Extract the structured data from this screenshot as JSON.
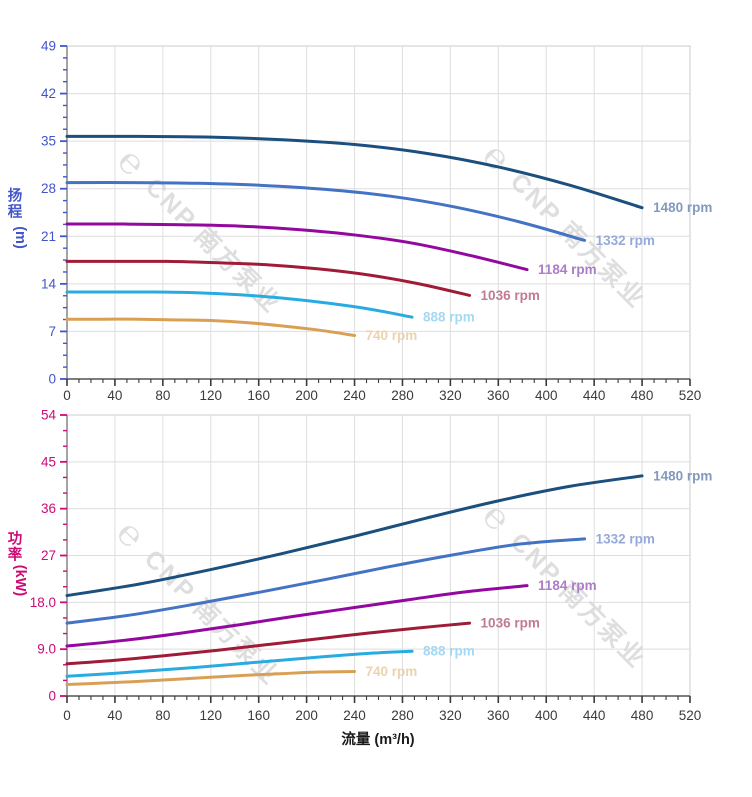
{
  "figure": {
    "background": "#ffffff",
    "watermark_logo": "℮",
    "watermark_text": "CNP 南方泵业",
    "watermark_color": "#d9d9d9"
  },
  "chart_data": [
    {
      "id": "head",
      "type": "line",
      "title": "",
      "xlabel": "流量 (m³/h)",
      "ylabel": "扬程",
      "y_unit": "(m)",
      "xlim": [
        0,
        520
      ],
      "ylim": [
        0,
        49
      ],
      "x_major_step": 40,
      "x_minor_per_major": 3,
      "y_major_step": 7,
      "y_minor_per_major": 3,
      "grid": true,
      "legend_position": "curve-ends",
      "axis_color": "#4255cb",
      "x_tick_color": "#3a3a3a",
      "x_tick_labels": [
        "0",
        "40",
        "80",
        "120",
        "160",
        "200",
        "240",
        "280",
        "320",
        "360",
        "400",
        "440",
        "480",
        "520"
      ],
      "y_tick_labels": [
        "0",
        "7",
        "14",
        "21",
        "28",
        "35",
        "42",
        "49"
      ],
      "series": [
        {
          "name": "1480 rpm",
          "rpm": 1480,
          "color": "#1b4f7e",
          "label_color": "#8299bd",
          "points": [
            [
              0,
              35.7
            ],
            [
              60,
              35.7
            ],
            [
              120,
              35.6
            ],
            [
              180,
              35.2
            ],
            [
              240,
              34.5
            ],
            [
              300,
              33.2
            ],
            [
              360,
              31.2
            ],
            [
              420,
              28.5
            ],
            [
              480,
              25.2
            ]
          ]
        },
        {
          "name": "1332 rpm",
          "rpm": 1332,
          "color": "#4472c4",
          "label_color": "#97a9da",
          "points": [
            [
              0,
              28.9
            ],
            [
              54,
              28.9
            ],
            [
              108,
              28.8
            ],
            [
              162,
              28.5
            ],
            [
              216,
              27.9
            ],
            [
              270,
              26.9
            ],
            [
              324,
              25.3
            ],
            [
              378,
              23.1
            ],
            [
              432,
              20.4
            ]
          ]
        },
        {
          "name": "1184 rpm",
          "rpm": 1184,
          "color": "#93099f",
          "label_color": "#ad7cc6",
          "points": [
            [
              0,
              22.8
            ],
            [
              48,
              22.8
            ],
            [
              96,
              22.7
            ],
            [
              144,
              22.5
            ],
            [
              192,
              22.0
            ],
            [
              240,
              21.2
            ],
            [
              288,
              20.0
            ],
            [
              336,
              18.2
            ],
            [
              384,
              16.1
            ]
          ]
        },
        {
          "name": "1036 rpm",
          "rpm": 1036,
          "color": "#a01b38",
          "label_color": "#c07b90",
          "points": [
            [
              0,
              17.3
            ],
            [
              42,
              17.3
            ],
            [
              84,
              17.3
            ],
            [
              126,
              17.1
            ],
            [
              168,
              16.8
            ],
            [
              210,
              16.2
            ],
            [
              252,
              15.3
            ],
            [
              294,
              14.0
            ],
            [
              336,
              12.3
            ]
          ]
        },
        {
          "name": "888 rpm",
          "rpm": 888,
          "color": "#29abe2",
          "label_color": "#a5d8f2",
          "points": [
            [
              0,
              12.8
            ],
            [
              36,
              12.8
            ],
            [
              72,
              12.8
            ],
            [
              108,
              12.7
            ],
            [
              144,
              12.4
            ],
            [
              180,
              11.9
            ],
            [
              216,
              11.2
            ],
            [
              252,
              10.3
            ],
            [
              288,
              9.1
            ]
          ]
        },
        {
          "name": "740 rpm",
          "rpm": 740,
          "color": "#d9a055",
          "label_color": "#ecd3ad",
          "points": [
            [
              0,
              8.8
            ],
            [
              30,
              8.8
            ],
            [
              60,
              8.8
            ],
            [
              90,
              8.7
            ],
            [
              120,
              8.6
            ],
            [
              150,
              8.3
            ],
            [
              180,
              7.8
            ],
            [
              210,
              7.2
            ],
            [
              240,
              6.4
            ]
          ]
        }
      ]
    },
    {
      "id": "power",
      "type": "line",
      "title": "",
      "xlabel": "流量 (m³/h)",
      "ylabel": "功率",
      "y_unit": "(kW)",
      "xlim": [
        0,
        520
      ],
      "ylim": [
        0,
        54
      ],
      "x_major_step": 40,
      "x_minor_per_major": 3,
      "y_major_step": 9,
      "y_minor_per_major": 2,
      "grid": true,
      "legend_position": "curve-ends",
      "axis_color": "#ce0a74",
      "x_tick_color": "#3a3a3a",
      "x_tick_labels": [
        "0",
        "40",
        "80",
        "120",
        "160",
        "200",
        "240",
        "280",
        "320",
        "360",
        "400",
        "440",
        "480",
        "520"
      ],
      "y_tick_labels": [
        "0",
        "9.0",
        "18.0",
        "27",
        "36",
        "45",
        "54"
      ],
      "series": [
        {
          "name": "1480 rpm",
          "rpm": 1480,
          "color": "#1b4f7e",
          "label_color": "#8299bd",
          "points": [
            [
              0,
              19.3
            ],
            [
              60,
              21.5
            ],
            [
              120,
              24.3
            ],
            [
              180,
              27.4
            ],
            [
              240,
              30.7
            ],
            [
              300,
              34.2
            ],
            [
              360,
              37.5
            ],
            [
              420,
              40.3
            ],
            [
              480,
              42.3
            ]
          ]
        },
        {
          "name": "1332 rpm",
          "rpm": 1332,
          "color": "#4472c4",
          "label_color": "#97a9da",
          "points": [
            [
              0,
              14.0
            ],
            [
              54,
              15.6
            ],
            [
              108,
              17.7
            ],
            [
              162,
              20.0
            ],
            [
              216,
              22.4
            ],
            [
              270,
              24.9
            ],
            [
              324,
              27.2
            ],
            [
              378,
              29.2
            ],
            [
              432,
              30.2
            ]
          ]
        },
        {
          "name": "1184 rpm",
          "rpm": 1184,
          "color": "#93099f",
          "label_color": "#ad7cc6",
          "points": [
            [
              0,
              9.6
            ],
            [
              48,
              10.7
            ],
            [
              96,
              12.1
            ],
            [
              144,
              13.7
            ],
            [
              192,
              15.4
            ],
            [
              240,
              17.0
            ],
            [
              288,
              18.6
            ],
            [
              336,
              20.1
            ],
            [
              384,
              21.2
            ]
          ]
        },
        {
          "name": "1036 rpm",
          "rpm": 1036,
          "color": "#a01b38",
          "label_color": "#c07b90",
          "points": [
            [
              0,
              6.2
            ],
            [
              42,
              6.9
            ],
            [
              84,
              7.8
            ],
            [
              126,
              8.8
            ],
            [
              168,
              9.9
            ],
            [
              210,
              11.0
            ],
            [
              252,
              12.1
            ],
            [
              294,
              13.1
            ],
            [
              336,
              14.0
            ]
          ]
        },
        {
          "name": "888 rpm",
          "rpm": 888,
          "color": "#29abe2",
          "label_color": "#a5d8f2",
          "points": [
            [
              0,
              3.8
            ],
            [
              36,
              4.3
            ],
            [
              72,
              4.9
            ],
            [
              108,
              5.5
            ],
            [
              144,
              6.2
            ],
            [
              180,
              6.9
            ],
            [
              216,
              7.6
            ],
            [
              252,
              8.2
            ],
            [
              288,
              8.6
            ]
          ]
        },
        {
          "name": "740 rpm",
          "rpm": 740,
          "color": "#d9a055",
          "label_color": "#ecd3ad",
          "points": [
            [
              0,
              2.2
            ],
            [
              30,
              2.5
            ],
            [
              60,
              2.8
            ],
            [
              90,
              3.2
            ],
            [
              120,
              3.6
            ],
            [
              150,
              4.0
            ],
            [
              180,
              4.3
            ],
            [
              210,
              4.6
            ],
            [
              240,
              4.7
            ]
          ]
        }
      ]
    }
  ]
}
